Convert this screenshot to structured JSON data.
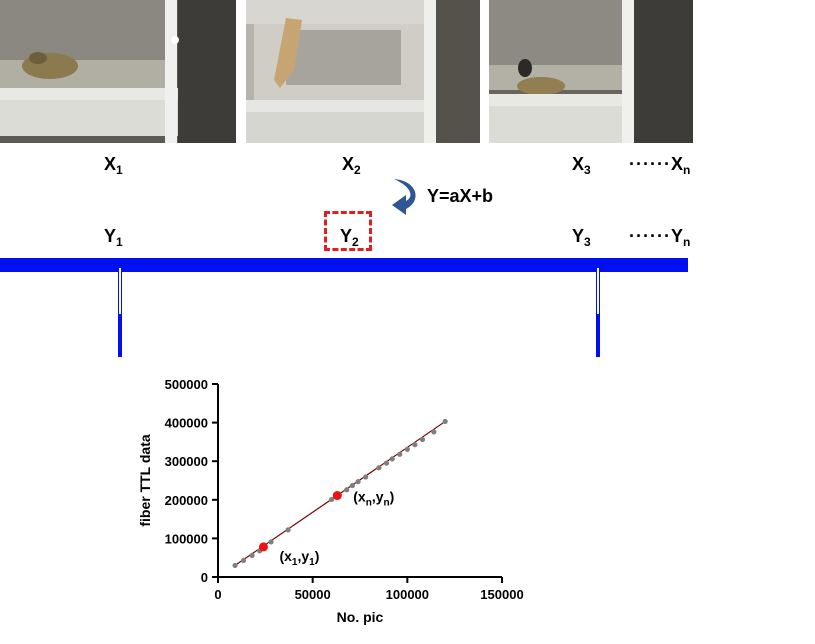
{
  "labels": {
    "x1": {
      "main": "X",
      "sub": "1"
    },
    "x2": {
      "main": "X",
      "sub": "2"
    },
    "x3": {
      "main": "X",
      "sub": "3"
    },
    "xn": {
      "dots": "······",
      "main": "X",
      "sub": "n"
    },
    "y1": {
      "main": "Y",
      "sub": "1"
    },
    "y2": {
      "main": "Y",
      "sub": "2"
    },
    "y3": {
      "main": "Y",
      "sub": "3"
    },
    "yn": {
      "dots": "······",
      "main": "Y",
      "sub": "n"
    }
  },
  "equation": "Y=aX+b",
  "colors": {
    "ttl_signal": "#0010ee",
    "highlight": "#e02020",
    "arrow": "#2f5597",
    "points": "#7f7f7f",
    "fit_line": "#7a0000",
    "marked": "#ee1111"
  },
  "photos": [
    "frame-1",
    "frame-2",
    "frame-3"
  ],
  "chart_data": {
    "type": "scatter",
    "xlabel": "No. pic",
    "ylabel": "fiber TTL data",
    "xlim": [
      0,
      150000
    ],
    "ylim": [
      0,
      500000
    ],
    "xticks": [
      0,
      50000,
      100000,
      150000
    ],
    "yticks": [
      0,
      100000,
      200000,
      300000,
      400000,
      500000
    ],
    "points": [
      [
        9000,
        30000
      ],
      [
        13500,
        43000
      ],
      [
        18000,
        56000
      ],
      [
        22000,
        68000
      ],
      [
        24000,
        76000
      ],
      [
        28000,
        91000
      ],
      [
        37000,
        122000
      ],
      [
        60000,
        201000
      ],
      [
        64000,
        214000
      ],
      [
        68000,
        226000
      ],
      [
        71000,
        237000
      ],
      [
        74000,
        247000
      ],
      [
        78000,
        259000
      ],
      [
        85000,
        283000
      ],
      [
        89000,
        295000
      ],
      [
        92000,
        306000
      ],
      [
        96000,
        318000
      ],
      [
        100000,
        331000
      ],
      [
        104000,
        343000
      ],
      [
        108000,
        356000
      ],
      [
        114000,
        376000
      ],
      [
        120000,
        403000
      ]
    ],
    "fit": {
      "x": [
        9000,
        120000
      ],
      "y": [
        30000,
        403000
      ]
    },
    "highlighted": [
      {
        "x": 24000,
        "y": 78000,
        "label": "(x",
        "sub": "1",
        "label2": ",y",
        "sub2": "1",
        "label3": ")"
      },
      {
        "x": 63000,
        "y": 211000,
        "label": "(x",
        "sub": "n",
        "label2": ",y",
        "sub2": "n",
        "label3": ")"
      }
    ]
  }
}
